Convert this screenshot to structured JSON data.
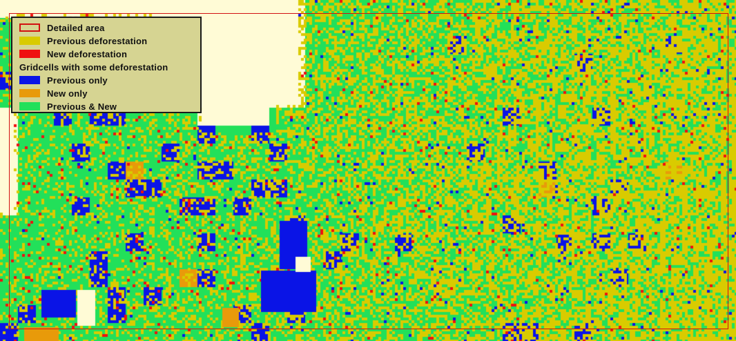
{
  "colors": {
    "background": "#fffbd6",
    "previous_deforestation": "#d9cb00",
    "new_deforestation": "#ef1010",
    "previous_only": "#0a14e6",
    "new_only": "#e89a0a",
    "previous_and_new": "#22e05a",
    "detailed_area_outline": "#d21010",
    "legend_background": "#d6d492"
  },
  "legend": {
    "items": [
      {
        "label": "Detailed area",
        "swatch": "outline",
        "color": "#d21010"
      },
      {
        "label": "Previous deforestation",
        "swatch": "fill",
        "color": "#d9cb00"
      },
      {
        "label": "New deforestation",
        "swatch": "fill",
        "color": "#ef1010"
      },
      {
        "label": "Gridcells with some deforestation",
        "swatch": "none",
        "color": ""
      },
      {
        "label": "Previous only",
        "swatch": "fill",
        "color": "#0a14e6"
      },
      {
        "label": "New only",
        "swatch": "fill",
        "color": "#e89a0a"
      },
      {
        "label": "Previous & New",
        "swatch": "fill",
        "color": "#22e05a"
      }
    ]
  }
}
